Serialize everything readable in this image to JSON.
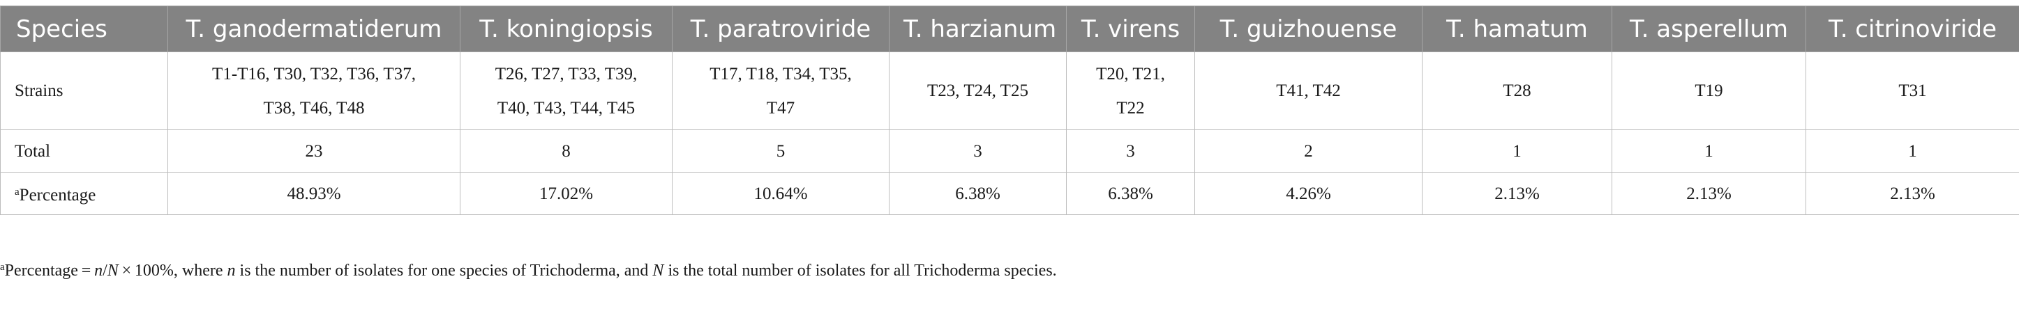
{
  "table": {
    "header": {
      "first": "Species",
      "species": [
        "T. ganodermatiderum",
        "T. koningiopsis",
        "T. paratroviride",
        "T. harzianum",
        "T. virens",
        "T. guizhouense",
        "T. hamatum",
        "T. asperellum",
        "T. citrinoviride"
      ]
    },
    "rows": {
      "strains": {
        "label": "Strains",
        "cells": [
          [
            "T1-T16, T30, T32, T36, T37,",
            "T38, T46, T48"
          ],
          [
            "T26, T27, T33, T39,",
            "T40, T43, T44, T45"
          ],
          [
            "T17, T18, T34, T35,",
            "T47"
          ],
          [
            "T23, T24, T25"
          ],
          [
            "T20, T21,",
            "T22"
          ],
          [
            "T41, T42"
          ],
          [
            "T28"
          ],
          [
            "T19"
          ],
          [
            "T31"
          ]
        ]
      },
      "total": {
        "label": "Total",
        "cells": [
          "23",
          "8",
          "5",
          "3",
          "3",
          "2",
          "1",
          "1",
          "1"
        ]
      },
      "percentage": {
        "label_sup": "a",
        "label": "Percentage",
        "cells": [
          "48.93%",
          "17.02%",
          "10.64%",
          "6.38%",
          "6.38%",
          "4.26%",
          "2.13%",
          "2.13%",
          "2.13%"
        ]
      }
    }
  },
  "footnote": {
    "sup": "a",
    "parts": [
      "Percentage = ",
      "n",
      "/",
      "N",
      " × 100%, where ",
      "n",
      " is the number of isolates for one species of Trichoderma, and ",
      "N",
      " is the total number of isolates for all Trichoderma species."
    ]
  }
}
